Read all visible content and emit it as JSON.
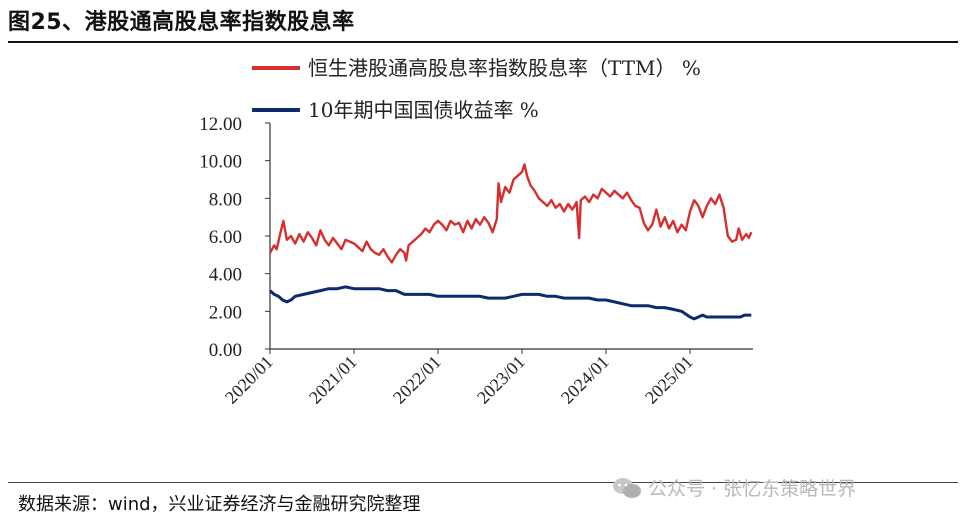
{
  "figure": {
    "title": "图25、港股通高股息率指数股息率",
    "source": "数据来源：wind，兴业证券经济与金融研究院整理",
    "watermark": "公众号 · 张忆东策略世界"
  },
  "colors": {
    "red": "#d62f2f",
    "navy": "#0d2a6e",
    "axis": "#333333"
  },
  "chart_data": {
    "type": "line",
    "title": "图25、港股通高股息率指数股息率",
    "xlabel": "",
    "ylabel": "",
    "ylim": [
      0,
      12
    ],
    "yticks": [
      "0.00",
      "2.00",
      "4.00",
      "6.00",
      "8.00",
      "10.00",
      "12.00"
    ],
    "xlim": [
      2020.0,
      2025.75
    ],
    "xticks": [
      {
        "x": 2020.0,
        "label": "2020/01"
      },
      {
        "x": 2021.0,
        "label": "2021/01"
      },
      {
        "x": 2022.0,
        "label": "2022/01"
      },
      {
        "x": 2023.0,
        "label": "2023/01"
      },
      {
        "x": 2024.0,
        "label": "2024/01"
      },
      {
        "x": 2025.0,
        "label": "2025/01"
      }
    ],
    "legend_position": "top",
    "grid": false,
    "series": [
      {
        "name": "恒生港股通高股息率指数股息率（TTM） %",
        "color": "#d62f2f",
        "points": [
          [
            2020.0,
            5.1
          ],
          [
            2020.05,
            5.5
          ],
          [
            2020.08,
            5.3
          ],
          [
            2020.12,
            6.1
          ],
          [
            2020.16,
            6.8
          ],
          [
            2020.2,
            5.8
          ],
          [
            2020.25,
            6.0
          ],
          [
            2020.3,
            5.6
          ],
          [
            2020.35,
            6.1
          ],
          [
            2020.4,
            5.7
          ],
          [
            2020.45,
            6.2
          ],
          [
            2020.5,
            5.9
          ],
          [
            2020.55,
            5.5
          ],
          [
            2020.6,
            6.3
          ],
          [
            2020.65,
            5.8
          ],
          [
            2020.7,
            5.5
          ],
          [
            2020.75,
            5.9
          ],
          [
            2020.8,
            5.6
          ],
          [
            2020.85,
            5.3
          ],
          [
            2020.9,
            5.8
          ],
          [
            2020.95,
            5.7
          ],
          [
            2021.0,
            5.6
          ],
          [
            2021.05,
            5.4
          ],
          [
            2021.1,
            5.2
          ],
          [
            2021.15,
            5.7
          ],
          [
            2021.2,
            5.3
          ],
          [
            2021.25,
            5.1
          ],
          [
            2021.3,
            5.0
          ],
          [
            2021.35,
            5.3
          ],
          [
            2021.4,
            4.9
          ],
          [
            2021.45,
            4.6
          ],
          [
            2021.5,
            5.0
          ],
          [
            2021.55,
            5.3
          ],
          [
            2021.6,
            5.1
          ],
          [
            2021.62,
            4.7
          ],
          [
            2021.65,
            5.5
          ],
          [
            2021.7,
            5.7
          ],
          [
            2021.75,
            5.9
          ],
          [
            2021.8,
            6.1
          ],
          [
            2021.85,
            6.4
          ],
          [
            2021.9,
            6.2
          ],
          [
            2021.95,
            6.6
          ],
          [
            2022.0,
            6.8
          ],
          [
            2022.05,
            6.6
          ],
          [
            2022.1,
            6.3
          ],
          [
            2022.15,
            6.8
          ],
          [
            2022.2,
            6.6
          ],
          [
            2022.25,
            6.7
          ],
          [
            2022.3,
            6.2
          ],
          [
            2022.35,
            6.8
          ],
          [
            2022.4,
            6.4
          ],
          [
            2022.45,
            6.9
          ],
          [
            2022.5,
            6.6
          ],
          [
            2022.55,
            7.0
          ],
          [
            2022.6,
            6.7
          ],
          [
            2022.65,
            6.2
          ],
          [
            2022.7,
            6.9
          ],
          [
            2022.72,
            8.8
          ],
          [
            2022.75,
            7.8
          ],
          [
            2022.8,
            8.6
          ],
          [
            2022.85,
            8.3
          ],
          [
            2022.9,
            9.0
          ],
          [
            2022.95,
            9.2
          ],
          [
            2023.0,
            9.4
          ],
          [
            2023.03,
            9.8
          ],
          [
            2023.06,
            9.2
          ],
          [
            2023.1,
            8.7
          ],
          [
            2023.15,
            8.4
          ],
          [
            2023.2,
            8.0
          ],
          [
            2023.25,
            7.8
          ],
          [
            2023.3,
            7.6
          ],
          [
            2023.35,
            7.9
          ],
          [
            2023.4,
            7.5
          ],
          [
            2023.45,
            7.7
          ],
          [
            2023.5,
            7.3
          ],
          [
            2023.55,
            7.7
          ],
          [
            2023.6,
            7.4
          ],
          [
            2023.65,
            7.8
          ],
          [
            2023.68,
            5.9
          ],
          [
            2023.7,
            7.9
          ],
          [
            2023.75,
            8.1
          ],
          [
            2023.8,
            7.8
          ],
          [
            2023.85,
            8.2
          ],
          [
            2023.9,
            8.0
          ],
          [
            2023.95,
            8.5
          ],
          [
            2024.0,
            8.3
          ],
          [
            2024.05,
            8.1
          ],
          [
            2024.1,
            8.4
          ],
          [
            2024.15,
            8.2
          ],
          [
            2024.2,
            8.0
          ],
          [
            2024.25,
            8.3
          ],
          [
            2024.3,
            7.9
          ],
          [
            2024.35,
            7.6
          ],
          [
            2024.4,
            7.5
          ],
          [
            2024.45,
            6.7
          ],
          [
            2024.5,
            6.3
          ],
          [
            2024.55,
            6.6
          ],
          [
            2024.6,
            7.4
          ],
          [
            2024.65,
            6.5
          ],
          [
            2024.7,
            7.0
          ],
          [
            2024.75,
            6.4
          ],
          [
            2024.8,
            6.8
          ],
          [
            2024.85,
            6.2
          ],
          [
            2024.9,
            6.6
          ],
          [
            2024.95,
            6.3
          ],
          [
            2025.0,
            7.3
          ],
          [
            2025.05,
            7.9
          ],
          [
            2025.1,
            7.6
          ],
          [
            2025.15,
            7.0
          ],
          [
            2025.2,
            7.6
          ],
          [
            2025.25,
            8.0
          ],
          [
            2025.3,
            7.7
          ],
          [
            2025.35,
            8.2
          ],
          [
            2025.4,
            7.5
          ],
          [
            2025.45,
            6.0
          ],
          [
            2025.5,
            5.7
          ],
          [
            2025.55,
            5.8
          ],
          [
            2025.58,
            6.4
          ],
          [
            2025.62,
            5.8
          ],
          [
            2025.67,
            6.1
          ],
          [
            2025.7,
            5.9
          ],
          [
            2025.73,
            6.2
          ]
        ]
      },
      {
        "name": "10年期中国国债收益率 %",
        "color": "#0d2a6e",
        "points": [
          [
            2020.0,
            3.1
          ],
          [
            2020.05,
            2.9
          ],
          [
            2020.1,
            2.8
          ],
          [
            2020.15,
            2.6
          ],
          [
            2020.2,
            2.5
          ],
          [
            2020.25,
            2.6
          ],
          [
            2020.3,
            2.8
          ],
          [
            2020.4,
            2.9
          ],
          [
            2020.5,
            3.0
          ],
          [
            2020.6,
            3.1
          ],
          [
            2020.7,
            3.2
          ],
          [
            2020.8,
            3.2
          ],
          [
            2020.9,
            3.3
          ],
          [
            2021.0,
            3.2
          ],
          [
            2021.1,
            3.2
          ],
          [
            2021.2,
            3.2
          ],
          [
            2021.3,
            3.2
          ],
          [
            2021.4,
            3.1
          ],
          [
            2021.5,
            3.1
          ],
          [
            2021.6,
            2.9
          ],
          [
            2021.7,
            2.9
          ],
          [
            2021.8,
            2.9
          ],
          [
            2021.9,
            2.9
          ],
          [
            2022.0,
            2.8
          ],
          [
            2022.1,
            2.8
          ],
          [
            2022.2,
            2.8
          ],
          [
            2022.3,
            2.8
          ],
          [
            2022.4,
            2.8
          ],
          [
            2022.5,
            2.8
          ],
          [
            2022.6,
            2.7
          ],
          [
            2022.7,
            2.7
          ],
          [
            2022.8,
            2.7
          ],
          [
            2022.9,
            2.8
          ],
          [
            2023.0,
            2.9
          ],
          [
            2023.1,
            2.9
          ],
          [
            2023.2,
            2.9
          ],
          [
            2023.3,
            2.8
          ],
          [
            2023.4,
            2.8
          ],
          [
            2023.5,
            2.7
          ],
          [
            2023.6,
            2.7
          ],
          [
            2023.7,
            2.7
          ],
          [
            2023.8,
            2.7
          ],
          [
            2023.9,
            2.6
          ],
          [
            2024.0,
            2.6
          ],
          [
            2024.1,
            2.5
          ],
          [
            2024.2,
            2.4
          ],
          [
            2024.3,
            2.3
          ],
          [
            2024.4,
            2.3
          ],
          [
            2024.5,
            2.3
          ],
          [
            2024.6,
            2.2
          ],
          [
            2024.7,
            2.2
          ],
          [
            2024.8,
            2.1
          ],
          [
            2024.9,
            2.0
          ],
          [
            2025.0,
            1.7
          ],
          [
            2025.05,
            1.6
          ],
          [
            2025.1,
            1.7
          ],
          [
            2025.15,
            1.8
          ],
          [
            2025.2,
            1.7
          ],
          [
            2025.3,
            1.7
          ],
          [
            2025.4,
            1.7
          ],
          [
            2025.5,
            1.7
          ],
          [
            2025.6,
            1.7
          ],
          [
            2025.65,
            1.8
          ],
          [
            2025.7,
            1.8
          ],
          [
            2025.73,
            1.8
          ]
        ]
      }
    ]
  }
}
